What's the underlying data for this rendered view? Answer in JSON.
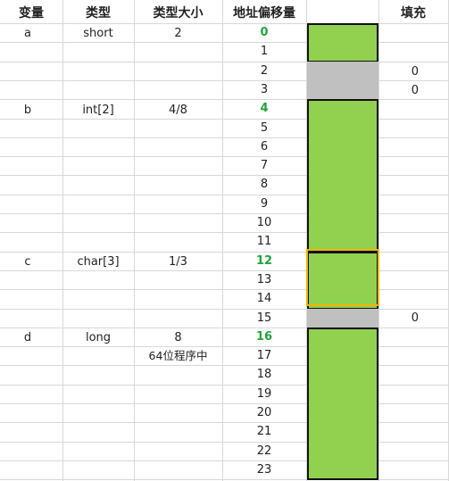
{
  "headers": {
    "variable": "变量",
    "type": "类型",
    "type_size": "类型大小",
    "offset": "地址偏移量",
    "memory": "",
    "padding": "填充"
  },
  "variables": [
    {
      "name": "a",
      "type": "short",
      "size": "2",
      "note": ""
    },
    {
      "name": "b",
      "type": "int[2]",
      "size": "4/8",
      "note": ""
    },
    {
      "name": "c",
      "type": "char[3]",
      "size": "1/3",
      "note": ""
    },
    {
      "name": "d",
      "type": "long",
      "size": "8",
      "note": "64位程序中"
    }
  ],
  "offsets": [
    "0",
    "1",
    "2",
    "3",
    "4",
    "5",
    "6",
    "7",
    "8",
    "9",
    "10",
    "11",
    "12",
    "13",
    "14",
    "15",
    "16",
    "17",
    "18",
    "19",
    "20",
    "21",
    "22",
    "23"
  ],
  "highlighted_offsets": [
    "0",
    "4",
    "12",
    "16"
  ],
  "padding_values": {
    "row2": "0",
    "row3": "0",
    "row15": "0"
  },
  "colors": {
    "data_fill": "#92d050",
    "padding_fill": "#c0c0c0",
    "start_offset_text": "#21a33c",
    "selection_border": "#f0b400",
    "grid": "#d8d8d8"
  }
}
